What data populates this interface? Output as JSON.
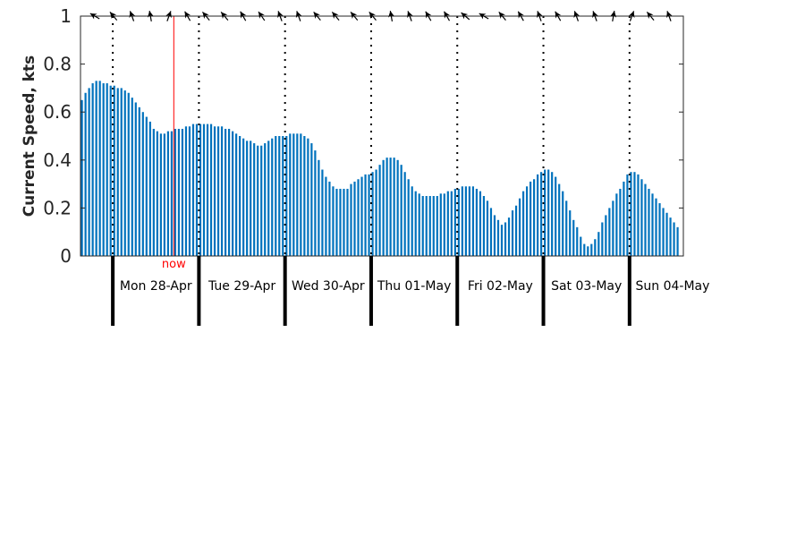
{
  "chart_data": {
    "type": "bar",
    "title": "",
    "xlabel": "",
    "ylabel": "Current Speed, kts",
    "ylim": [
      0,
      1
    ],
    "yticks": [
      "0",
      "0.2",
      "0.4",
      "0.6",
      "0.8",
      "1"
    ],
    "grid": false,
    "bar_color": "#0072bd",
    "now_color": "#ff0000",
    "now_label": "now",
    "now_hour": 17,
    "start_hour": -9,
    "end_hour": 159,
    "step_hours": 1,
    "days": [
      {
        "label": "Mon 28-Apr",
        "start_hour": 0
      },
      {
        "label": "Tue 29-Apr",
        "start_hour": 24
      },
      {
        "label": "Wed 30-Apr",
        "start_hour": 48
      },
      {
        "label": "Thu 01-May",
        "start_hour": 72
      },
      {
        "label": "Fri 02-May",
        "start_hour": 96
      },
      {
        "label": "Sat 03-May",
        "start_hour": 120
      },
      {
        "label": "Sun 04-May",
        "start_hour": 144
      }
    ],
    "values": [
      0.65,
      0.68,
      0.7,
      0.72,
      0.73,
      0.73,
      0.72,
      0.72,
      0.71,
      0.71,
      0.7,
      0.7,
      0.69,
      0.68,
      0.66,
      0.64,
      0.62,
      0.6,
      0.58,
      0.56,
      0.53,
      0.52,
      0.51,
      0.51,
      0.52,
      0.52,
      0.53,
      0.53,
      0.53,
      0.54,
      0.54,
      0.55,
      0.55,
      0.55,
      0.55,
      0.55,
      0.55,
      0.54,
      0.54,
      0.54,
      0.53,
      0.53,
      0.52,
      0.51,
      0.5,
      0.49,
      0.48,
      0.48,
      0.47,
      0.46,
      0.46,
      0.47,
      0.48,
      0.49,
      0.5,
      0.5,
      0.5,
      0.5,
      0.51,
      0.51,
      0.51,
      0.51,
      0.5,
      0.49,
      0.47,
      0.44,
      0.4,
      0.36,
      0.33,
      0.31,
      0.29,
      0.28,
      0.28,
      0.28,
      0.28,
      0.3,
      0.31,
      0.32,
      0.33,
      0.34,
      0.34,
      0.35,
      0.36,
      0.38,
      0.4,
      0.41,
      0.41,
      0.41,
      0.4,
      0.38,
      0.35,
      0.32,
      0.29,
      0.27,
      0.26,
      0.25,
      0.25,
      0.25,
      0.25,
      0.25,
      0.26,
      0.26,
      0.27,
      0.27,
      0.28,
      0.28,
      0.29,
      0.29,
      0.29,
      0.29,
      0.28,
      0.27,
      0.25,
      0.23,
      0.2,
      0.17,
      0.15,
      0.13,
      0.14,
      0.16,
      0.19,
      0.21,
      0.24,
      0.27,
      0.29,
      0.31,
      0.32,
      0.34,
      0.35,
      0.36,
      0.36,
      0.35,
      0.33,
      0.3,
      0.27,
      0.23,
      0.19,
      0.15,
      0.12,
      0.08,
      0.05,
      0.04,
      0.05,
      0.07,
      0.1,
      0.14,
      0.17,
      0.2,
      0.23,
      0.26,
      0.28,
      0.31,
      0.34,
      0.35,
      0.35,
      0.34,
      0.32,
      0.3,
      0.28,
      0.26,
      0.24,
      0.22,
      0.2,
      0.18,
      0.16,
      0.14,
      0.12
    ],
    "direction_arrows_deg": [
      300,
      320,
      340,
      350,
      20,
      330,
      320,
      320,
      330,
      325,
      340,
      340,
      320,
      320,
      320,
      320,
      350,
      340,
      330,
      330,
      310,
      300,
      320,
      330,
      340,
      330,
      340,
      340,
      10,
      20,
      320,
      340
    ]
  }
}
